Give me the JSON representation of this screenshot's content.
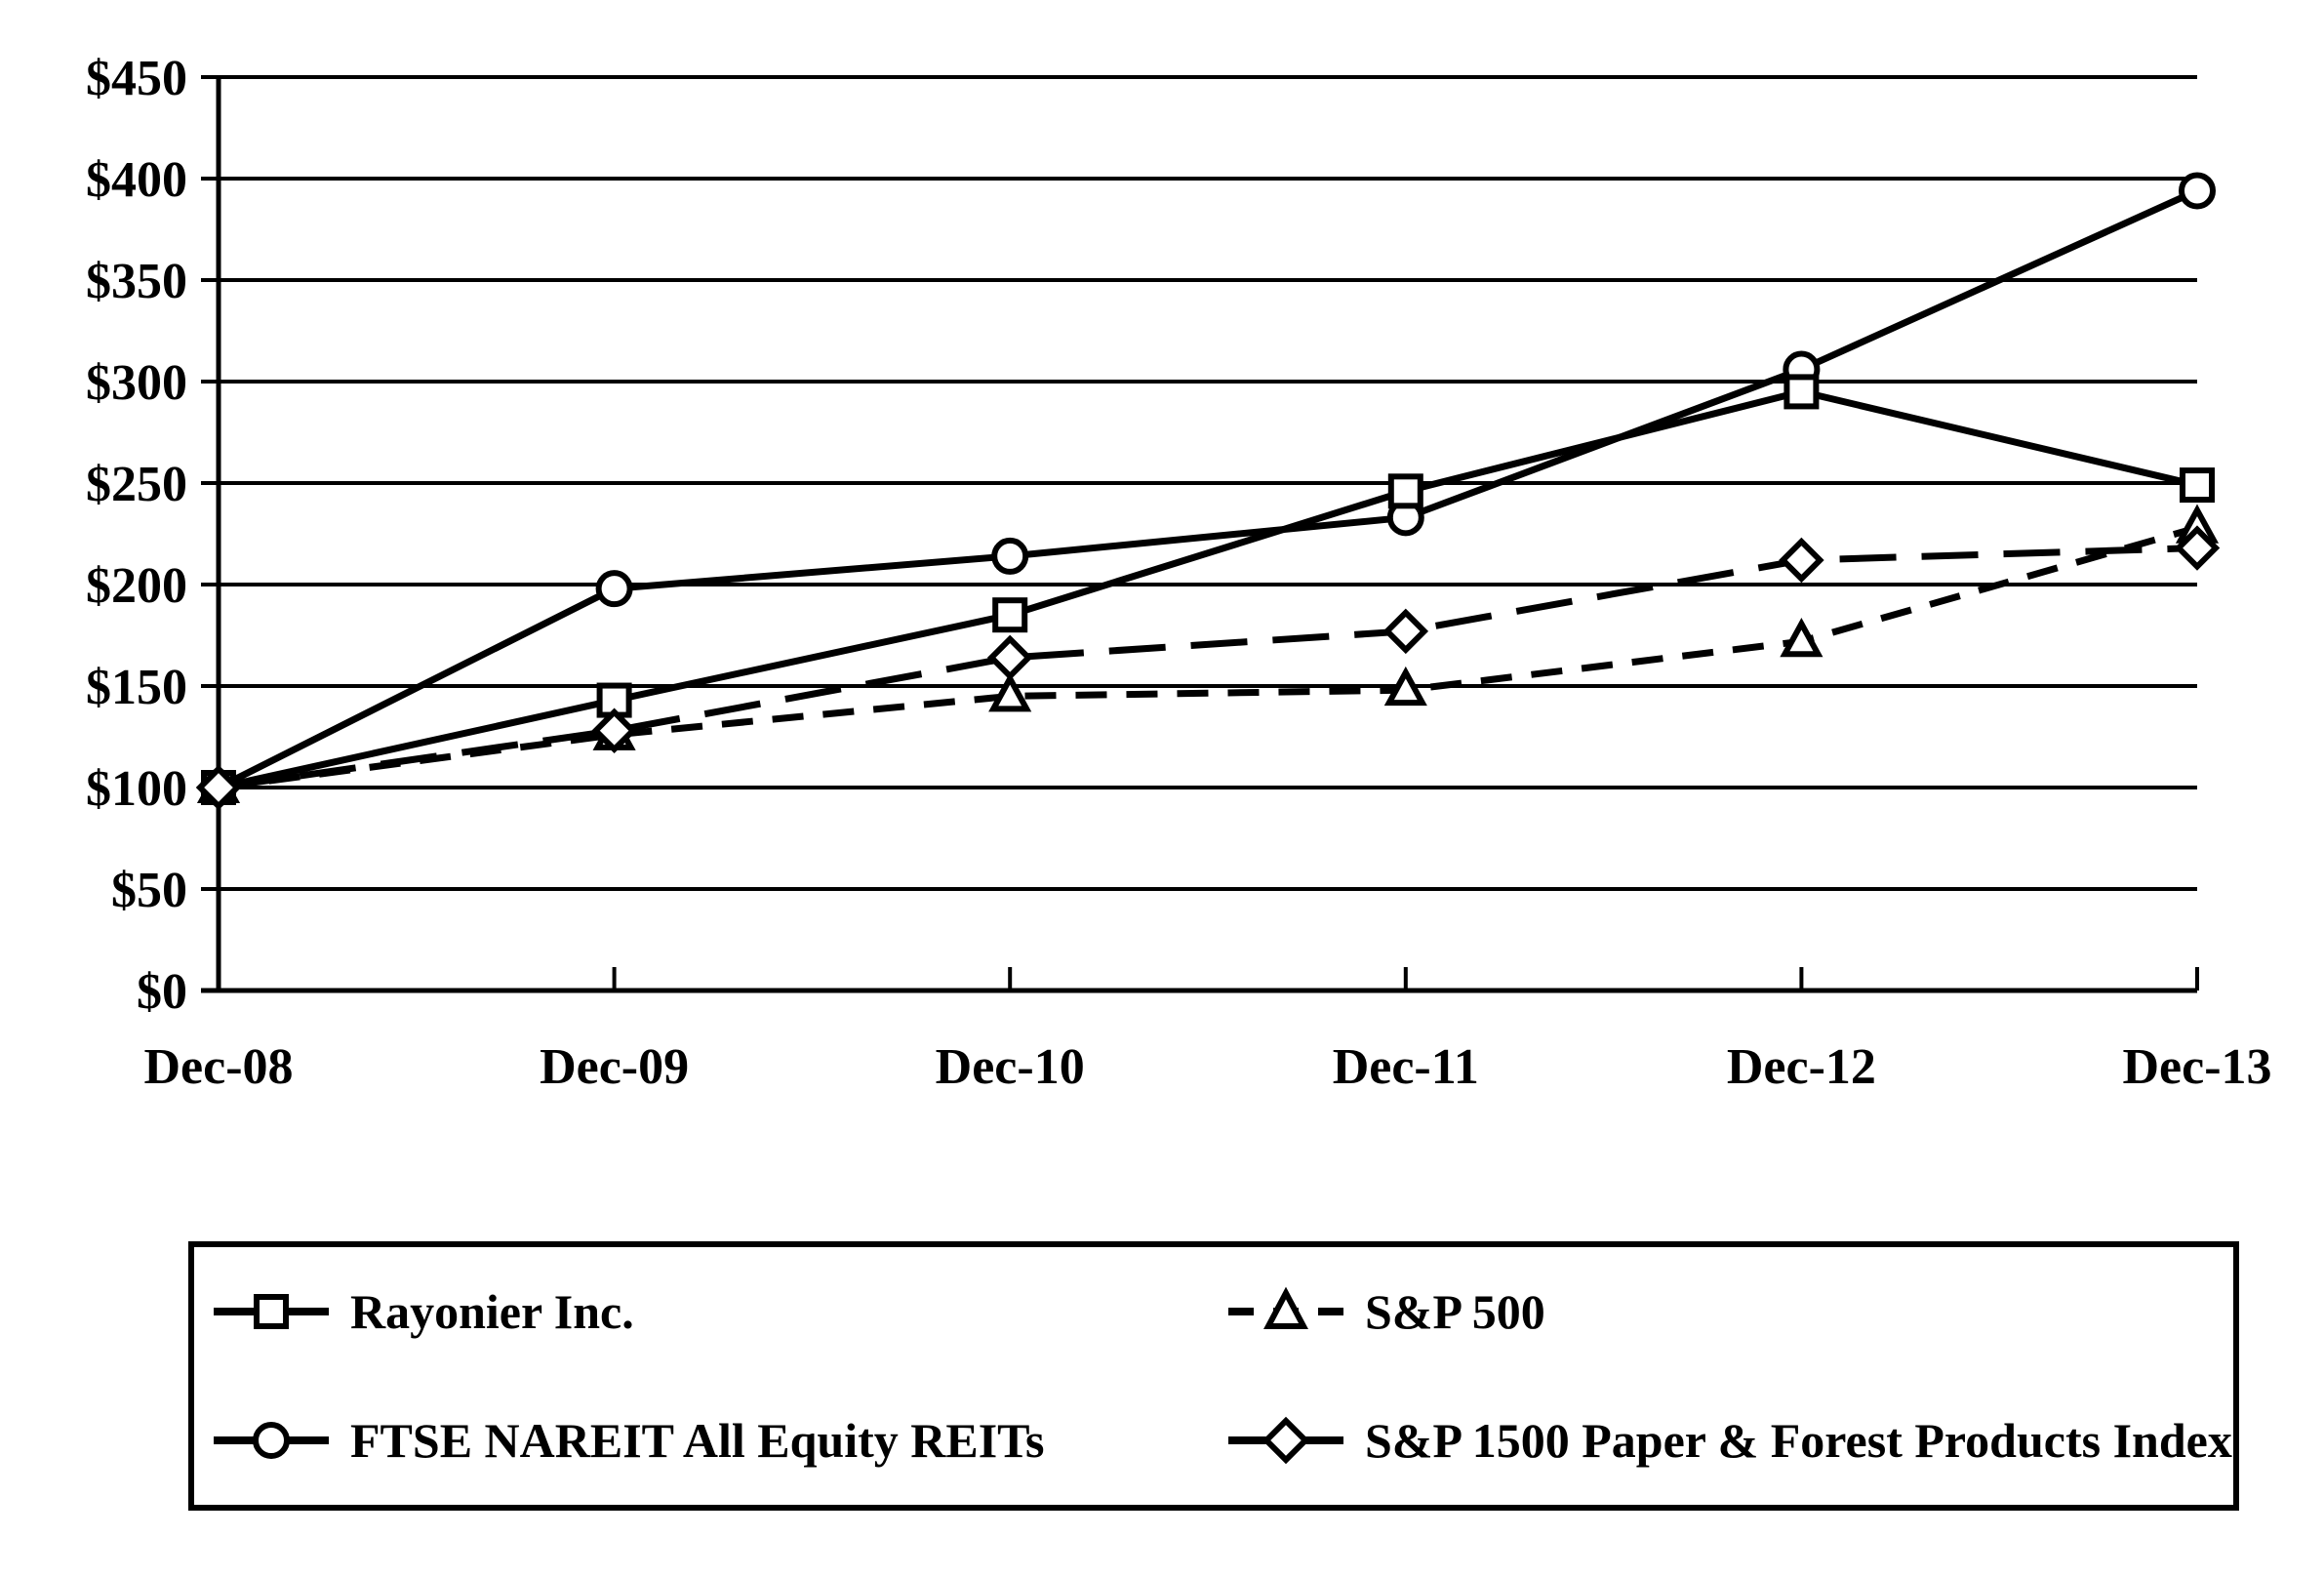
{
  "chart_data": {
    "type": "line",
    "title": "",
    "xlabel": "",
    "ylabel": "",
    "categories": [
      "Dec-08",
      "Dec-09",
      "Dec-10",
      "Dec-11",
      "Dec-12",
      "Dec-13"
    ],
    "series": [
      {
        "name": "Rayonier Inc.",
        "marker": "square",
        "line": "solid",
        "values": [
          100,
          143,
          185,
          246,
          295,
          249
        ]
      },
      {
        "name": "FTSE NAREIT All Equity REITs",
        "marker": "circle",
        "line": "solid",
        "values": [
          100,
          198,
          214,
          233,
          306,
          394
        ]
      },
      {
        "name": "S&P 500",
        "marker": "triangle",
        "line": "dash-short",
        "values": [
          100,
          126,
          145,
          148,
          172,
          228
        ]
      },
      {
        "name": "S&P 1500 Paper & Forest Products Index",
        "marker": "diamond",
        "line": "dash-long",
        "values": [
          100,
          128,
          164,
          177,
          212,
          218
        ]
      }
    ],
    "y_ticks": [
      {
        "value": 0,
        "label": "$0"
      },
      {
        "value": 50,
        "label": "$50"
      },
      {
        "value": 100,
        "label": "$100"
      },
      {
        "value": 150,
        "label": "$150"
      },
      {
        "value": 200,
        "label": "$200"
      },
      {
        "value": 250,
        "label": "$250"
      },
      {
        "value": 300,
        "label": "$300"
      },
      {
        "value": 350,
        "label": "$350"
      },
      {
        "value": 400,
        "label": "$400"
      },
      {
        "value": 450,
        "label": "$450"
      }
    ],
    "ylim": [
      0,
      450
    ],
    "grid": true,
    "legend_position": "bottom-box",
    "colors": {
      "foreground": "#000000",
      "background": "#ffffff"
    }
  }
}
